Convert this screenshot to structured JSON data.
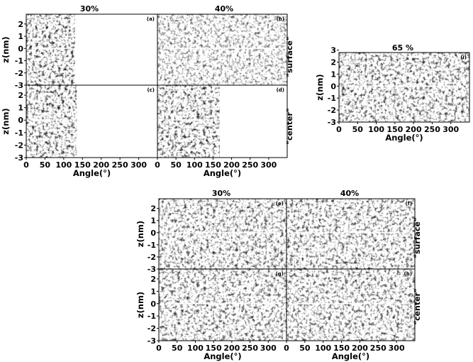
{
  "figure": {
    "panels": [
      {
        "id": "a",
        "label": "(a)",
        "x_extent": [
          0,
          130
        ],
        "density": 0.9
      },
      {
        "id": "b",
        "label": "(b)",
        "x_extent": [
          0,
          360
        ],
        "density": 0.55
      },
      {
        "id": "c",
        "label": "(c)",
        "x_extent": [
          0,
          135
        ],
        "density": 0.9
      },
      {
        "id": "d",
        "label": "(d)",
        "x_extent": [
          0,
          168
        ],
        "density": 0.9
      },
      {
        "id": "i",
        "label": "(i)",
        "x_extent": [
          0,
          360
        ],
        "density": 0.8
      },
      {
        "id": "e",
        "label": "(e)",
        "x_extent": [
          0,
          360
        ],
        "density": 0.75
      },
      {
        "id": "f",
        "label": "(f)",
        "x_extent": [
          0,
          360
        ],
        "density": 0.75
      },
      {
        "id": "g",
        "label": "(g)",
        "x_extent": [
          0,
          360
        ],
        "density": 0.75
      },
      {
        "id": "h",
        "label": "(h)",
        "x_extent": [
          0,
          360
        ],
        "density": 0.75
      }
    ],
    "col_titles": {
      "top_left": "30%",
      "top_right": "40%",
      "right": "65 %",
      "bottom_left": "30%",
      "bottom_right": "40%"
    },
    "row_labels": {
      "surface": "\"surface\"",
      "center": "\"center\""
    },
    "x_axis": {
      "label": "Angle(°)",
      "ticks": [
        "0",
        "50",
        "100",
        "150",
        "200",
        "250",
        "300"
      ],
      "range": [
        0,
        350
      ]
    },
    "y_axis": {
      "label": "z(nm)",
      "ticks_small": [
        "2",
        "1",
        "0",
        "-1",
        "-2",
        "-3"
      ],
      "ticks_large": [
        "3",
        "2",
        "1",
        "0",
        "-1",
        "-2",
        "-3"
      ],
      "range": [
        -3,
        2.8
      ]
    }
  }
}
